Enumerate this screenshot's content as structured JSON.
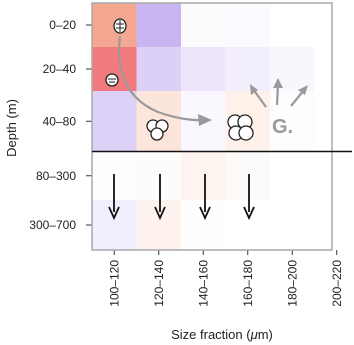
{
  "chart_data": {
    "type": "heatmap",
    "title": "",
    "xlabel_pre": "Size fraction (",
    "xlabel_mu": "μ",
    "xlabel_post": "m)",
    "ylabel": "Depth (m)",
    "x_categories": [
      "100–120",
      "120–140",
      "140–160",
      "160–180",
      "180–200",
      "200–220"
    ],
    "y_categories": [
      "0–20",
      "20–40",
      "40–80",
      "80–300",
      "300–700"
    ],
    "values": [
      [
        0.45,
        0.3,
        0.03,
        0.02,
        0.0,
        0.0
      ],
      [
        0.75,
        0.2,
        0.12,
        0.06,
        0.03,
        0.0
      ],
      [
        0.25,
        0.15,
        0.05,
        0.08,
        0.02,
        0.0
      ],
      [
        0.03,
        0.02,
        0.06,
        0.02,
        0.0,
        0.0
      ],
      [
        0.08,
        0.05,
        0.02,
        0.0,
        0.0,
        0.0
      ]
    ],
    "cell_colors": [
      [
        "#f5a891",
        "#c9b5f2",
        "#fcfbfe",
        "#fcfafe",
        "#ffffff",
        "#ffffff"
      ],
      [
        "#f07a7c",
        "#dcd0f7",
        "#ece5fb",
        "#f3eefc",
        "#f9f7fe",
        "#ffffff"
      ],
      [
        "#ddd1f7",
        "#fce6dc",
        "#faf8fe",
        "#fdf1ea",
        "#fdfcff",
        "#ffffff"
      ],
      [
        "#fdfdff",
        "#fefcfa",
        "#fdf3ef",
        "#fdfbfa",
        "#ffffff",
        "#ffffff"
      ],
      [
        "#f1eefd",
        "#fdf2ee",
        "#fefefe",
        "#ffffff",
        "#ffffff",
        "#ffffff"
      ]
    ],
    "annotation": "G.",
    "divider_between_rows": [
      "40–80",
      "80–300"
    ],
    "grid": false,
    "panel_border_color": "#aaaaaa"
  }
}
